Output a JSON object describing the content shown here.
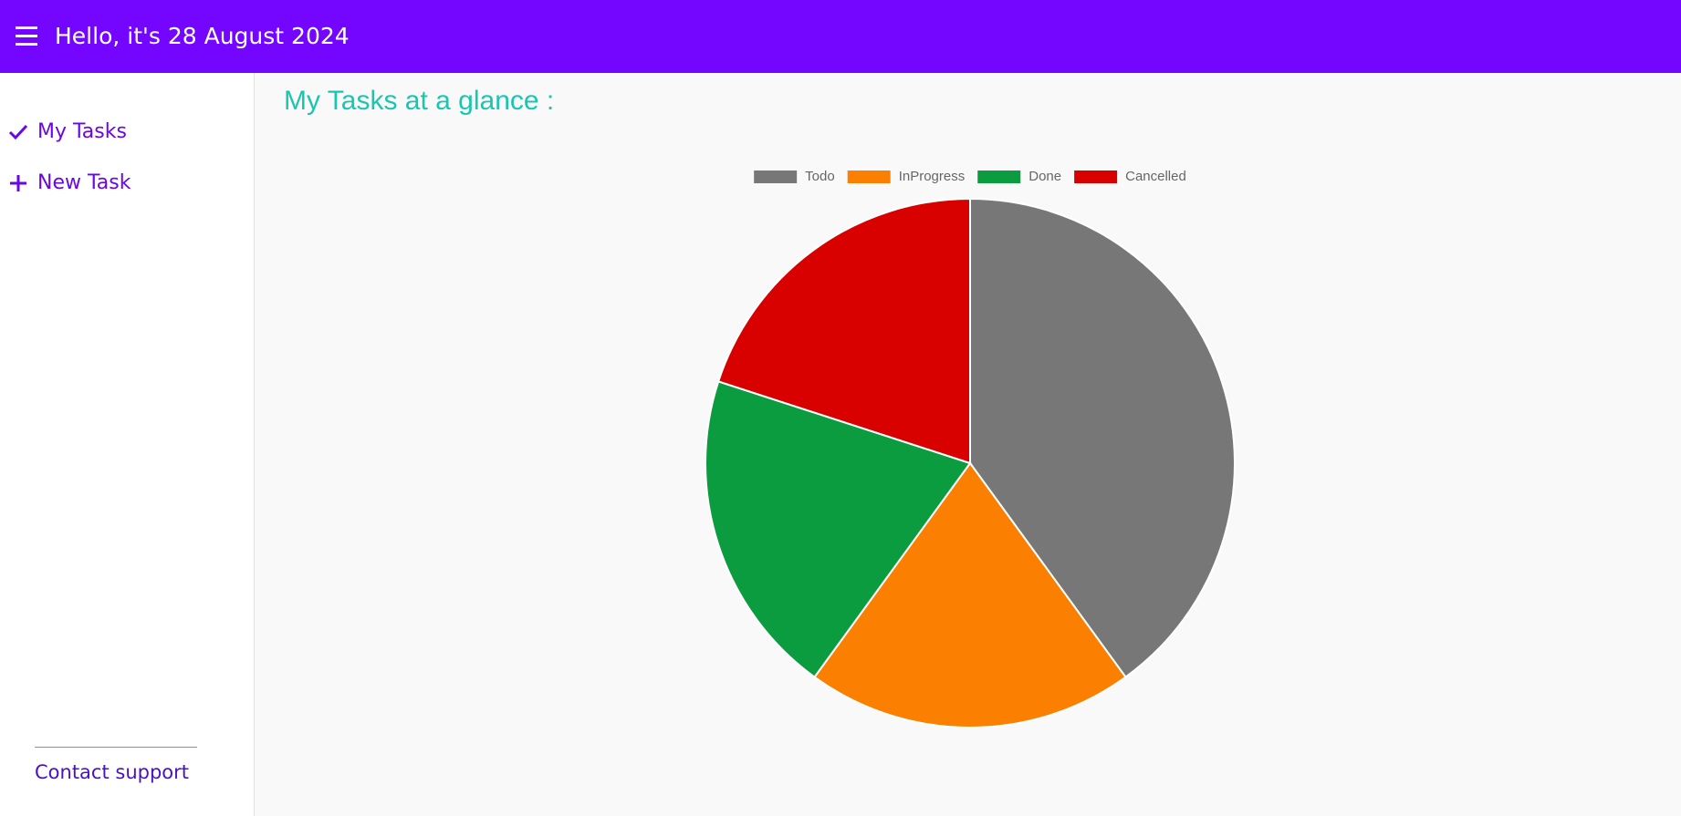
{
  "header": {
    "title": "Hello, it's 28 August 2024"
  },
  "sidebar": {
    "items": [
      "My Tasks",
      "New Task"
    ],
    "contact": "Contact support"
  },
  "chart_data": {
    "type": "pie",
    "title": "My Tasks at a glance :",
    "categories": [
      "Todo",
      "InProgress",
      "Done",
      "Cancelled"
    ],
    "values": [
      40,
      20,
      20,
      20
    ],
    "colors": [
      "#777777",
      "#fb7f00",
      "#0a9c3f",
      "#d90000"
    ],
    "legend": "top"
  }
}
